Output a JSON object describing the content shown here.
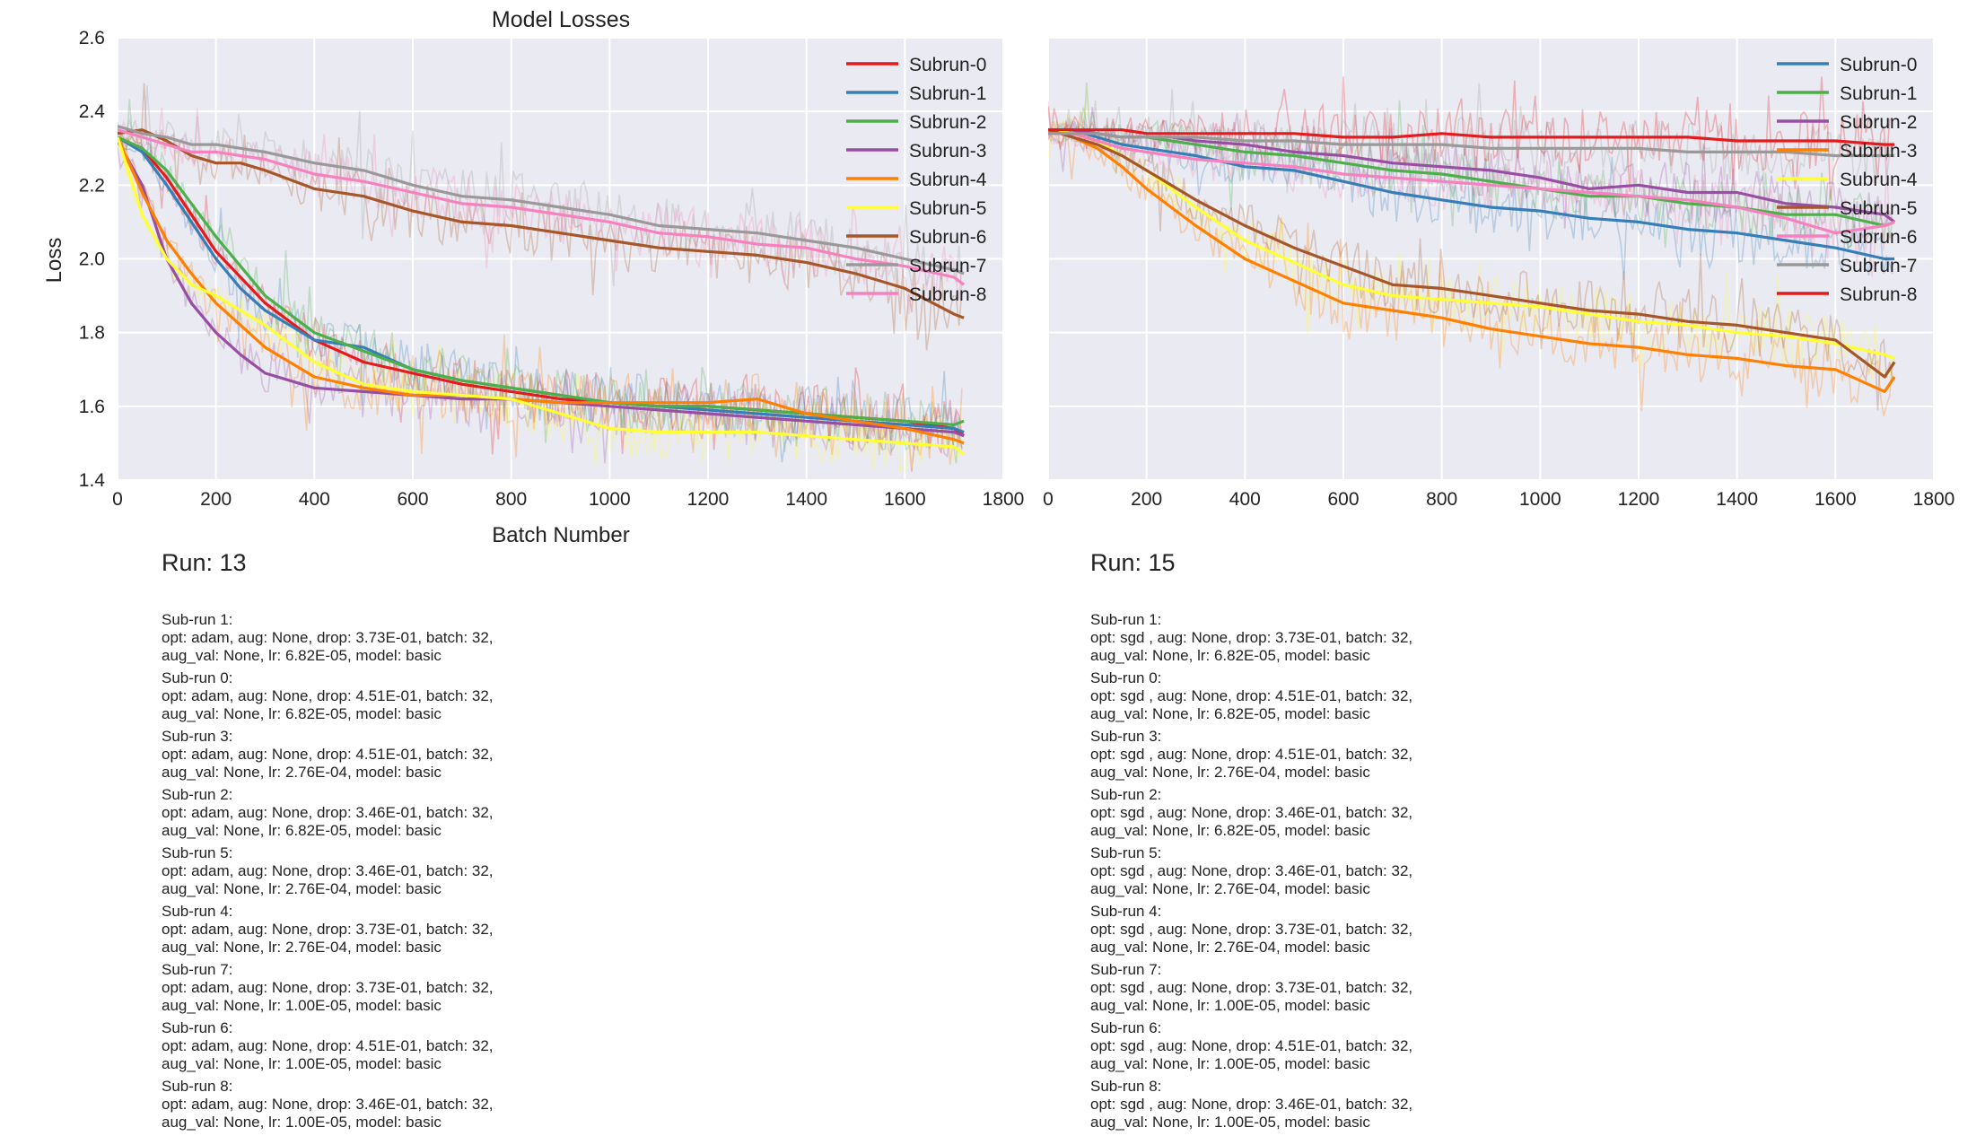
{
  "figure": {
    "title": "Model Losses",
    "xlabel": "Batch Number",
    "ylabel": "Loss"
  },
  "chart_data": [
    {
      "type": "line",
      "title": "Model Losses",
      "xlabel": "Batch Number",
      "ylabel": "Loss",
      "xlim": [
        0,
        1800
      ],
      "ylim": [
        1.4,
        2.6
      ],
      "xticks": [
        0,
        200,
        400,
        600,
        800,
        1000,
        1200,
        1400,
        1600,
        1800
      ],
      "yticks": [
        1.4,
        1.6,
        1.8,
        2.0,
        2.2,
        2.4,
        2.6
      ],
      "grid": true,
      "legend_position": "top-right",
      "x": [
        0,
        50,
        100,
        150,
        200,
        250,
        300,
        400,
        500,
        600,
        700,
        800,
        900,
        1000,
        1100,
        1200,
        1300,
        1400,
        1500,
        1600,
        1700,
        1720
      ],
      "series": [
        {
          "name": "Subrun-0",
          "color": "#e41a1c",
          "values": [
            2.33,
            2.3,
            2.22,
            2.12,
            2.02,
            1.95,
            1.88,
            1.78,
            1.72,
            1.69,
            1.66,
            1.64,
            1.62,
            1.61,
            1.6,
            1.6,
            1.59,
            1.58,
            1.57,
            1.56,
            1.54,
            1.52
          ]
        },
        {
          "name": "Subrun-1",
          "color": "#377eb8",
          "values": [
            2.33,
            2.29,
            2.2,
            2.1,
            2.0,
            1.92,
            1.86,
            1.78,
            1.76,
            1.7,
            1.67,
            1.65,
            1.63,
            1.61,
            1.6,
            1.59,
            1.58,
            1.57,
            1.56,
            1.55,
            1.54,
            1.53
          ]
        },
        {
          "name": "Subrun-2",
          "color": "#4daf4a",
          "values": [
            2.33,
            2.3,
            2.24,
            2.15,
            2.06,
            1.98,
            1.9,
            1.8,
            1.75,
            1.7,
            1.67,
            1.65,
            1.63,
            1.61,
            1.6,
            1.6,
            1.59,
            1.58,
            1.57,
            1.56,
            1.55,
            1.56
          ]
        },
        {
          "name": "Subrun-3",
          "color": "#984ea3",
          "values": [
            2.32,
            2.2,
            2.0,
            1.88,
            1.8,
            1.74,
            1.69,
            1.65,
            1.64,
            1.63,
            1.62,
            1.62,
            1.61,
            1.6,
            1.59,
            1.58,
            1.57,
            1.56,
            1.55,
            1.54,
            1.53,
            1.52
          ]
        },
        {
          "name": "Subrun-4",
          "color": "#ff7f00",
          "values": [
            2.33,
            2.18,
            2.05,
            1.96,
            1.88,
            1.82,
            1.76,
            1.68,
            1.65,
            1.63,
            1.63,
            1.62,
            1.61,
            1.61,
            1.61,
            1.61,
            1.62,
            1.58,
            1.56,
            1.54,
            1.51,
            1.5
          ]
        },
        {
          "name": "Subrun-5",
          "color": "#ffff33",
          "values": [
            2.33,
            2.12,
            2.0,
            1.93,
            1.9,
            1.86,
            1.82,
            1.72,
            1.66,
            1.64,
            1.63,
            1.62,
            1.58,
            1.54,
            1.53,
            1.53,
            1.53,
            1.52,
            1.51,
            1.5,
            1.49,
            1.47
          ]
        },
        {
          "name": "Subrun-6",
          "color": "#a65628",
          "values": [
            2.34,
            2.35,
            2.32,
            2.28,
            2.26,
            2.26,
            2.24,
            2.19,
            2.17,
            2.13,
            2.1,
            2.09,
            2.07,
            2.05,
            2.03,
            2.02,
            2.01,
            1.99,
            1.96,
            1.92,
            1.85,
            1.84
          ]
        },
        {
          "name": "Subrun-7",
          "color": "#999999",
          "values": [
            2.36,
            2.34,
            2.33,
            2.31,
            2.31,
            2.3,
            2.29,
            2.26,
            2.24,
            2.2,
            2.17,
            2.16,
            2.14,
            2.12,
            2.09,
            2.08,
            2.07,
            2.05,
            2.03,
            2.0,
            1.97,
            1.96
          ]
        },
        {
          "name": "Subrun-8",
          "color": "#f781bf",
          "values": [
            2.35,
            2.33,
            2.31,
            2.29,
            2.29,
            2.28,
            2.27,
            2.23,
            2.21,
            2.18,
            2.15,
            2.14,
            2.12,
            2.1,
            2.07,
            2.06,
            2.04,
            2.03,
            2.0,
            1.98,
            1.95,
            1.93
          ]
        }
      ]
    },
    {
      "type": "line",
      "title": "",
      "xlabel": "",
      "ylabel": "",
      "xlim": [
        0,
        1800
      ],
      "ylim": [
        1.4,
        2.6
      ],
      "xticks": [
        0,
        200,
        400,
        600,
        800,
        1000,
        1200,
        1400,
        1600,
        1800
      ],
      "yticks": [
        1.4,
        1.6,
        1.8,
        2.0,
        2.2,
        2.4,
        2.6
      ],
      "grid": true,
      "legend_position": "top-right",
      "x": [
        0,
        50,
        100,
        150,
        200,
        250,
        300,
        400,
        500,
        600,
        700,
        800,
        900,
        1000,
        1100,
        1200,
        1300,
        1400,
        1500,
        1600,
        1700,
        1720
      ],
      "series": [
        {
          "name": "Subrun-0",
          "color": "#377eb8",
          "values": [
            2.34,
            2.35,
            2.33,
            2.31,
            2.3,
            2.29,
            2.28,
            2.25,
            2.24,
            2.21,
            2.18,
            2.16,
            2.14,
            2.13,
            2.11,
            2.1,
            2.08,
            2.07,
            2.05,
            2.03,
            2.0,
            2.0
          ]
        },
        {
          "name": "Subrun-1",
          "color": "#4daf4a",
          "values": [
            2.35,
            2.35,
            2.34,
            2.33,
            2.33,
            2.32,
            2.31,
            2.29,
            2.28,
            2.26,
            2.24,
            2.23,
            2.21,
            2.19,
            2.17,
            2.17,
            2.15,
            2.14,
            2.12,
            2.12,
            2.09,
            2.1
          ]
        },
        {
          "name": "Subrun-2",
          "color": "#984ea3",
          "values": [
            2.35,
            2.35,
            2.34,
            2.33,
            2.33,
            2.33,
            2.32,
            2.31,
            2.29,
            2.28,
            2.26,
            2.25,
            2.24,
            2.22,
            2.19,
            2.2,
            2.18,
            2.18,
            2.15,
            2.14,
            2.12,
            2.1
          ]
        },
        {
          "name": "Subrun-3",
          "color": "#ff7f00",
          "values": [
            2.35,
            2.33,
            2.3,
            2.25,
            2.19,
            2.14,
            2.09,
            2.0,
            1.94,
            1.88,
            1.86,
            1.84,
            1.81,
            1.79,
            1.77,
            1.76,
            1.74,
            1.73,
            1.71,
            1.7,
            1.64,
            1.68
          ]
        },
        {
          "name": "Subrun-4",
          "color": "#ffff33",
          "values": [
            2.35,
            2.34,
            2.32,
            2.28,
            2.24,
            2.19,
            2.14,
            2.05,
            1.99,
            1.93,
            1.9,
            1.89,
            1.88,
            1.87,
            1.85,
            1.83,
            1.82,
            1.8,
            1.79,
            1.77,
            1.74,
            1.73
          ]
        },
        {
          "name": "Subrun-5",
          "color": "#a65628",
          "values": [
            2.35,
            2.33,
            2.31,
            2.28,
            2.24,
            2.2,
            2.16,
            2.09,
            2.03,
            1.98,
            1.93,
            1.92,
            1.9,
            1.88,
            1.86,
            1.85,
            1.83,
            1.82,
            1.8,
            1.78,
            1.68,
            1.72
          ]
        },
        {
          "name": "Subrun-6",
          "color": "#f781bf",
          "values": [
            2.34,
            2.34,
            2.32,
            2.3,
            2.29,
            2.28,
            2.27,
            2.26,
            2.25,
            2.23,
            2.22,
            2.21,
            2.2,
            2.19,
            2.18,
            2.17,
            2.16,
            2.14,
            2.11,
            2.07,
            2.09,
            2.1
          ]
        },
        {
          "name": "Subrun-7",
          "color": "#999999",
          "values": [
            2.34,
            2.34,
            2.34,
            2.33,
            2.33,
            2.33,
            2.33,
            2.32,
            2.32,
            2.31,
            2.31,
            2.31,
            2.3,
            2.3,
            2.3,
            2.3,
            2.29,
            2.29,
            2.29,
            2.28,
            2.28,
            2.28
          ]
        },
        {
          "name": "Subrun-8",
          "color": "#e41a1c",
          "values": [
            2.35,
            2.35,
            2.35,
            2.35,
            2.34,
            2.34,
            2.34,
            2.34,
            2.34,
            2.33,
            2.33,
            2.34,
            2.33,
            2.33,
            2.33,
            2.33,
            2.33,
            2.32,
            2.32,
            2.32,
            2.31,
            2.31
          ]
        }
      ]
    }
  ],
  "runs": [
    {
      "title": "Run: 13",
      "subruns": [
        {
          "label": "Sub-run 1:",
          "config": "opt: adam, aug: None, drop: 3.73E-01, batch: 32, aug_val: None, lr: 6.82E-05, model: basic"
        },
        {
          "label": "Sub-run 0:",
          "config": "opt: adam, aug: None, drop: 4.51E-01, batch: 32, aug_val: None, lr: 6.82E-05, model: basic"
        },
        {
          "label": "Sub-run 3:",
          "config": "opt: adam, aug: None, drop: 4.51E-01, batch: 32, aug_val: None, lr: 2.76E-04, model: basic"
        },
        {
          "label": "Sub-run 2:",
          "config": "opt: adam, aug: None, drop: 3.46E-01, batch: 32, aug_val: None, lr: 6.82E-05, model: basic"
        },
        {
          "label": "Sub-run 5:",
          "config": "opt: adam, aug: None, drop: 3.46E-01, batch: 32, aug_val: None, lr: 2.76E-04, model: basic"
        },
        {
          "label": "Sub-run 4:",
          "config": "opt: adam, aug: None, drop: 3.73E-01, batch: 32, aug_val: None, lr: 2.76E-04, model: basic"
        },
        {
          "label": "Sub-run 7:",
          "config": "opt: adam, aug: None, drop: 3.73E-01, batch: 32, aug_val: None, lr: 1.00E-05, model: basic"
        },
        {
          "label": "Sub-run 6:",
          "config": "opt: adam, aug: None, drop: 4.51E-01, batch: 32, aug_val: None, lr: 1.00E-05, model: basic"
        },
        {
          "label": "Sub-run 8:",
          "config": "opt: adam, aug: None, drop: 3.46E-01, batch: 32, aug_val: None, lr: 1.00E-05, model: basic"
        }
      ]
    },
    {
      "title": "Run: 15",
      "subruns": [
        {
          "label": "Sub-run 1:",
          "config": "opt: sgd , aug: None, drop: 3.73E-01, batch: 32, aug_val: None, lr: 6.82E-05, model: basic"
        },
        {
          "label": "Sub-run 0:",
          "config": "opt: sgd , aug: None, drop: 4.51E-01, batch: 32, aug_val: None, lr: 6.82E-05, model: basic"
        },
        {
          "label": "Sub-run 3:",
          "config": "opt: sgd , aug: None, drop: 4.51E-01, batch: 32, aug_val: None, lr: 2.76E-04, model: basic"
        },
        {
          "label": "Sub-run 2:",
          "config": "opt: sgd , aug: None, drop: 3.46E-01, batch: 32, aug_val: None, lr: 6.82E-05, model: basic"
        },
        {
          "label": "Sub-run 5:",
          "config": "opt: sgd , aug: None, drop: 3.46E-01, batch: 32, aug_val: None, lr: 2.76E-04, model: basic"
        },
        {
          "label": "Sub-run 4:",
          "config": "opt: sgd , aug: None, drop: 3.73E-01, batch: 32, aug_val: None, lr: 2.76E-04, model: basic"
        },
        {
          "label": "Sub-run 7:",
          "config": "opt: sgd , aug: None, drop: 3.73E-01, batch: 32, aug_val: None, lr: 1.00E-05, model: basic"
        },
        {
          "label": "Sub-run 6:",
          "config": "opt: sgd , aug: None, drop: 4.51E-01, batch: 32, aug_val: None, lr: 1.00E-05, model: basic"
        },
        {
          "label": "Sub-run 8:",
          "config": "opt: sgd , aug: None, drop: 3.46E-01, batch: 32, aug_val: None, lr: 1.00E-05, model: basic"
        }
      ]
    }
  ]
}
